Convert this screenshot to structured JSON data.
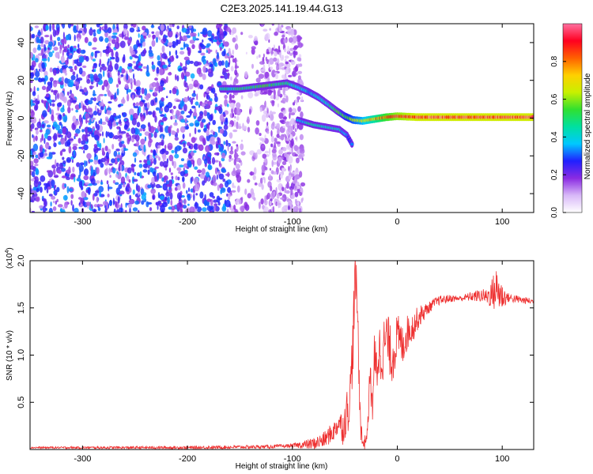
{
  "figure_title": "C2E3.2025.141.19.44.G13",
  "chart_data": [
    {
      "type": "heatmap",
      "title": "C2E3.2025.141.19.44.G13",
      "xlabel": "Height of straight line (km)",
      "ylabel": "Frequency (Hz)",
      "xlim": [
        -350,
        130
      ],
      "ylim": [
        -50,
        50
      ],
      "x_ticks": [
        -300,
        -200,
        -100,
        0,
        100
      ],
      "y_ticks": [
        -40,
        -20,
        0,
        20,
        40
      ],
      "colorbar": {
        "label": "Normalized spectral amplitude",
        "range": [
          0.0,
          1.0
        ],
        "ticks": [
          0.0,
          0.2,
          0.4,
          0.6,
          0.8
        ],
        "colors": [
          "#ffffff",
          "#d8b8f8",
          "#8a2be2",
          "#2020ff",
          "#00c8ff",
          "#00e0a0",
          "#30e030",
          "#c8f000",
          "#ffd000",
          "#ff6000",
          "#ff0020",
          "#ff70a0"
        ]
      },
      "noise_region_x": [
        -350,
        -90
      ],
      "signal_track": [
        {
          "x": -168,
          "y": 15.5,
          "v": 0.45
        },
        {
          "x": -150,
          "y": 15.5,
          "v": 0.45
        },
        {
          "x": -135,
          "y": 16.5,
          "v": 0.5
        },
        {
          "x": -120,
          "y": 17.5,
          "v": 0.5
        },
        {
          "x": -105,
          "y": 18.5,
          "v": 0.45
        },
        {
          "x": -95,
          "y": 16.5,
          "v": 0.4
        },
        {
          "x": -85,
          "y": 14,
          "v": 0.35
        },
        {
          "x": -75,
          "y": 11,
          "v": 0.4
        },
        {
          "x": -65,
          "y": 7,
          "v": 0.45
        },
        {
          "x": -58,
          "y": 4,
          "v": 0.5
        },
        {
          "x": -50,
          "y": 1,
          "v": 0.55
        },
        {
          "x": -42,
          "y": -1,
          "v": 0.6
        },
        {
          "x": -33,
          "y": -1.5,
          "v": 0.65
        },
        {
          "x": -22,
          "y": -0.5,
          "v": 0.75
        },
        {
          "x": -10,
          "y": 0.5,
          "v": 0.85
        },
        {
          "x": 0,
          "y": 1,
          "v": 0.9
        },
        {
          "x": 20,
          "y": 0.5,
          "v": 0.95
        },
        {
          "x": 130,
          "y": 0.5,
          "v": 0.95
        }
      ],
      "secondary_track": [
        {
          "x": -95,
          "y": -1,
          "v": 0.35
        },
        {
          "x": -80,
          "y": -3.5,
          "v": 0.45
        },
        {
          "x": -70,
          "y": -4.5,
          "v": 0.45
        },
        {
          "x": -55,
          "y": -6,
          "v": 0.4
        },
        {
          "x": -48,
          "y": -9,
          "v": 0.35
        },
        {
          "x": -42,
          "y": -15,
          "v": 0.3
        }
      ]
    },
    {
      "type": "line",
      "xlabel": "Height of straight line (km)",
      "ylabel": "SNR (10 * v/v)",
      "y_multiplier_label": "(x10",
      "y_multiplier_exp": "4",
      "y_multiplier_close": ")",
      "xlim": [
        -350,
        130
      ],
      "ylim": [
        0,
        2.0
      ],
      "x_ticks": [
        -300,
        -200,
        -100,
        0,
        100
      ],
      "y_ticks": [
        0.5,
        1.0,
        1.5,
        2.0
      ],
      "y_tick_labels": [
        "0.5",
        "1.0",
        "1.5",
        "2.0"
      ],
      "series": [
        {
          "color": "#ee3030",
          "x": [
            -350,
            -200,
            -120,
            -100,
            -80,
            -70,
            -60,
            -55,
            -52,
            -48,
            -45,
            -42,
            -40,
            -38,
            -36,
            -34,
            -32,
            -30,
            -28,
            -26,
            -24,
            -22,
            -20,
            -18,
            -15,
            -10,
            -5,
            0,
            5,
            10,
            15,
            20,
            25,
            30,
            35,
            40,
            50,
            60,
            70,
            80,
            85,
            90,
            95,
            100,
            110,
            120,
            130
          ],
          "y": [
            0.02,
            0.02,
            0.03,
            0.04,
            0.06,
            0.1,
            0.2,
            0.3,
            0.22,
            0.4,
            0.55,
            1.2,
            1.85,
            1.5,
            0.6,
            0.12,
            0.06,
            0.1,
            0.25,
            0.85,
            0.4,
            0.95,
            0.8,
            1.05,
            1.0,
            1.2,
            0.95,
            1.2,
            1.1,
            1.25,
            1.3,
            1.4,
            1.45,
            1.5,
            1.55,
            1.58,
            1.6,
            1.6,
            1.62,
            1.63,
            1.62,
            1.65,
            1.7,
            1.62,
            1.6,
            1.58,
            1.57
          ]
        }
      ],
      "noise_amplitude": [
        {
          "x": -350,
          "a": 0.01
        },
        {
          "x": -100,
          "a": 0.02
        },
        {
          "x": -55,
          "a": 0.12
        },
        {
          "x": -42,
          "a": 0.35
        },
        {
          "x": -30,
          "a": 0.05
        },
        {
          "x": -20,
          "a": 0.35
        },
        {
          "x": 0,
          "a": 0.25
        },
        {
          "x": 30,
          "a": 0.06
        },
        {
          "x": 60,
          "a": 0.03
        },
        {
          "x": 85,
          "a": 0.08
        },
        {
          "x": 95,
          "a": 0.25
        },
        {
          "x": 105,
          "a": 0.05
        },
        {
          "x": 130,
          "a": 0.03
        }
      ]
    }
  ]
}
